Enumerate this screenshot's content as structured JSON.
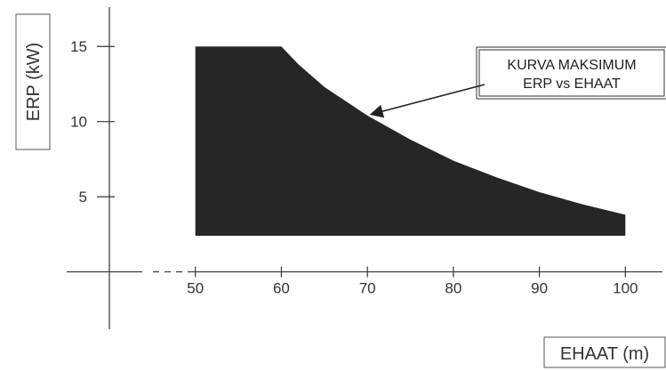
{
  "chart_data": {
    "type": "area",
    "title": "",
    "xlabel": "EHAAT (m)",
    "ylabel": "ERP (kW)",
    "xlim": [
      40,
      104
    ],
    "ylim": [
      -5,
      17.5
    ],
    "x_ticks": [
      50,
      60,
      70,
      80,
      90,
      100
    ],
    "x_tick_labels": [
      "50",
      "60",
      "70",
      "80",
      "90",
      "100"
    ],
    "y_ticks": [
      5,
      10,
      15
    ],
    "y_tick_labels": [
      "5",
      "10",
      "15"
    ],
    "grid": false,
    "legend": "none",
    "fill_color": "#262626",
    "region_floor_erp": 2.4,
    "series": [
      {
        "x": [
          50,
          60,
          62,
          65,
          70,
          75,
          80,
          85,
          90,
          95,
          100
        ],
        "values": [
          15,
          15,
          13.8,
          12.3,
          10.4,
          8.8,
          7.4,
          6.3,
          5.3,
          4.5,
          3.8
        ]
      }
    ],
    "annotations": [
      {
        "text_lines": [
          "KURVA MAKSIMUM",
          "ERP vs EHAAT"
        ],
        "points_to": {
          "x": 70,
          "y": 10.6
        }
      }
    ]
  }
}
